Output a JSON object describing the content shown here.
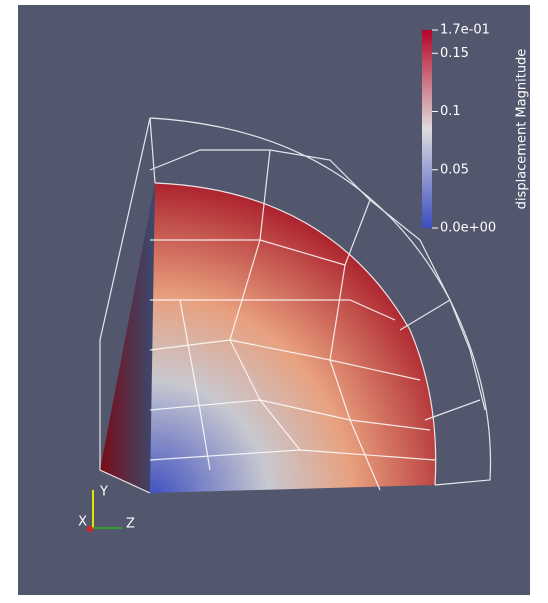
{
  "colorbar": {
    "title": "displacement Magnitude",
    "range": [
      {
        "value": 0,
        "label": "0.0e+00"
      },
      {
        "value": 0.17,
        "label": "1.7e-01"
      }
    ],
    "ticks": [
      0.05,
      0.1,
      0.15
    ]
  },
  "axes": {
    "x": "X",
    "y": "Y",
    "z": "Z"
  }
}
